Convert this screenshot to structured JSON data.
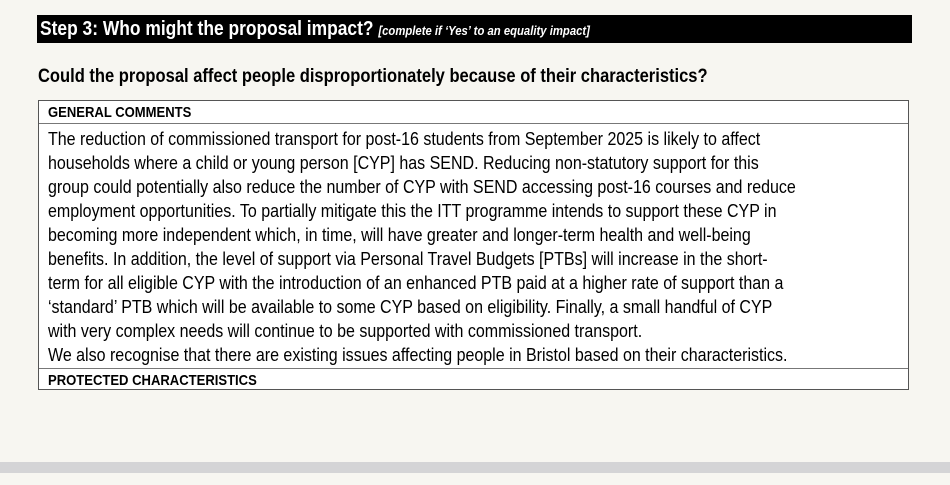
{
  "banner": {
    "title": "Step 3: Who might the proposal impact? ",
    "note": "[complete if ‘Yes’ to an equality impact]"
  },
  "question": "Could the proposal affect people disproportionately because of their characteristics?",
  "table": {
    "general_header": "GENERAL COMMENTS",
    "general_lines": [
      "The reduction of commissioned transport for post-16 students from September 2025 is likely to affect",
      "households where a child or young person [CYP] has SEND. Reducing non-statutory support for this",
      "group could potentially also reduce the number of CYP with SEND accessing post-16 courses and reduce",
      "employment opportunities. To partially mitigate this the ITT programme intends to support these CYP in",
      "becoming more independent which, in time, will have greater and longer-term health and well-being",
      "benefits. In addition, the level of support via Personal Travel Budgets [PTBs] will increase in the short-",
      "term for all eligible CYP with the introduction of an enhanced PTB paid at a higher rate of support than a",
      "‘standard’ PTB which will be available to some CYP based on eligibility. Finally, a small handful of CYP",
      "with very complex needs will continue to be supported with commissioned transport.",
      "We also recognise that there are existing issues affecting people in Bristol based on their characteristics."
    ],
    "protected_header": "PROTECTED CHARACTERISTICS"
  }
}
